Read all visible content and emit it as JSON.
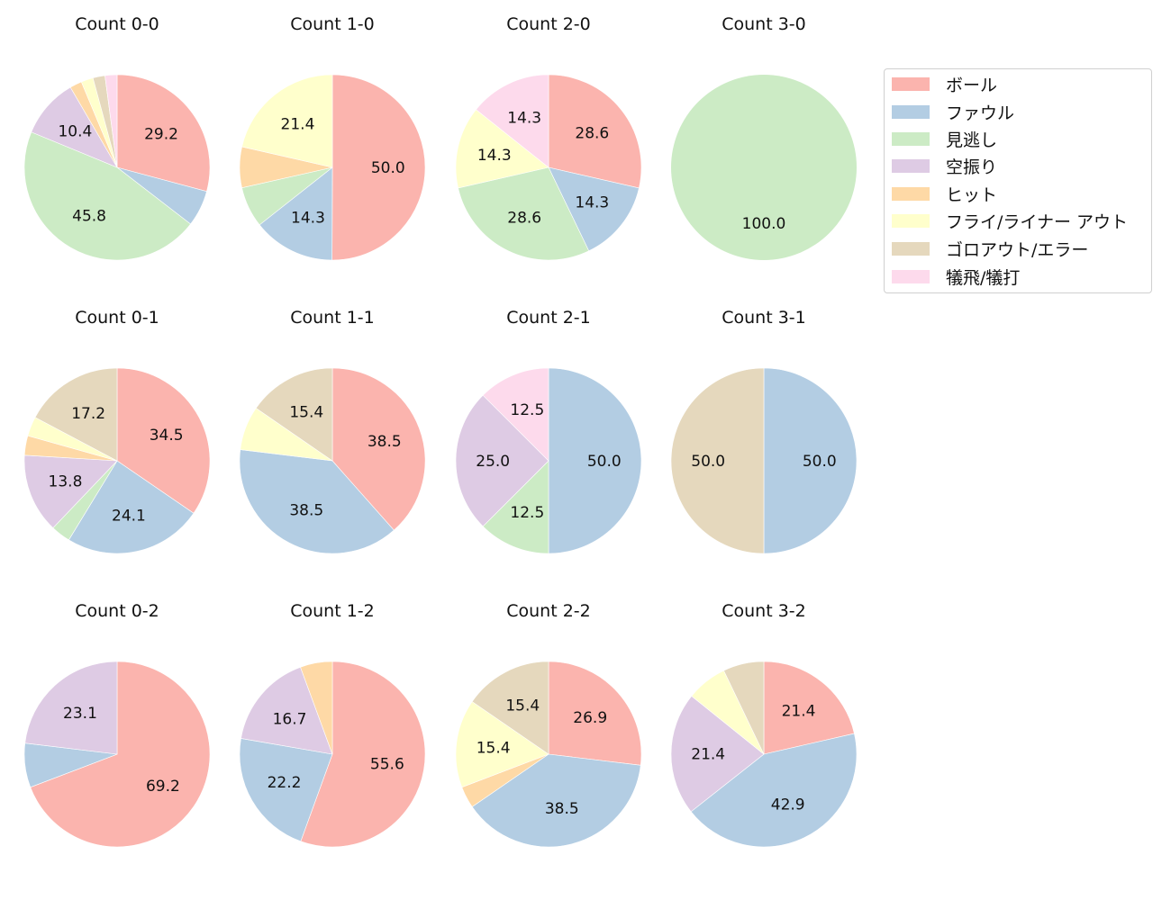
{
  "chart_data": {
    "type": "pie",
    "legend": {
      "position": "right",
      "entries": [
        {
          "label": "ボール",
          "color": "#fbb4ae"
        },
        {
          "label": "ファウル",
          "color": "#b3cde3"
        },
        {
          "label": "見逃し",
          "color": "#ccebc5"
        },
        {
          "label": "空振り",
          "color": "#decbe4"
        },
        {
          "label": "ヒット",
          "color": "#fed9a6"
        },
        {
          "label": "フライ/ライナー アウト",
          "color": "#ffffcc"
        },
        {
          "label": "ゴロアウト/エラー",
          "color": "#e5d8bd"
        },
        {
          "label": "犠飛/犠打",
          "color": "#fddaec"
        }
      ]
    },
    "categories": [
      "ボール",
      "ファウル",
      "見逃し",
      "空振り",
      "ヒット",
      "フライ/ライナー アウト",
      "ゴロアウト/エラー",
      "犠飛/犠打"
    ],
    "charts": [
      {
        "title": "Count 0-0",
        "row": 0,
        "col": 0,
        "values": [
          29.2,
          6.3,
          45.8,
          10.4,
          2.1,
          2.1,
          2.1,
          2.1
        ],
        "labels": [
          "29.2",
          "",
          "45.8",
          "10.4",
          "",
          "",
          "",
          ""
        ]
      },
      {
        "title": "Count 1-0",
        "row": 0,
        "col": 1,
        "values": [
          50.0,
          14.3,
          7.1,
          0,
          7.1,
          21.4,
          0,
          0
        ],
        "labels": [
          "50.0",
          "14.3",
          "",
          "",
          "",
          "21.4",
          "",
          ""
        ]
      },
      {
        "title": "Count 2-0",
        "row": 0,
        "col": 2,
        "values": [
          28.6,
          14.3,
          28.6,
          0,
          0,
          14.3,
          0,
          14.3
        ],
        "labels": [
          "28.6",
          "14.3",
          "28.6",
          "",
          "",
          "14.3",
          "",
          "14.3"
        ]
      },
      {
        "title": "Count 3-0",
        "row": 0,
        "col": 3,
        "values": [
          0,
          0,
          100.0,
          0,
          0,
          0,
          0,
          0
        ],
        "labels": [
          "",
          "",
          "100.0",
          "",
          "",
          "",
          "",
          ""
        ]
      },
      {
        "title": "Count 0-1",
        "row": 1,
        "col": 0,
        "values": [
          34.5,
          24.1,
          3.4,
          13.8,
          3.4,
          3.4,
          17.2,
          0
        ],
        "labels": [
          "34.5",
          "24.1",
          "",
          "13.8",
          "",
          "",
          "17.2",
          ""
        ]
      },
      {
        "title": "Count 1-1",
        "row": 1,
        "col": 1,
        "values": [
          38.5,
          38.5,
          0,
          0,
          0,
          7.7,
          15.4,
          0
        ],
        "labels": [
          "38.5",
          "38.5",
          "",
          "",
          "",
          "",
          "15.4",
          ""
        ]
      },
      {
        "title": "Count 2-1",
        "row": 1,
        "col": 2,
        "values": [
          0,
          50.0,
          12.5,
          25.0,
          0,
          0,
          0,
          12.5
        ],
        "labels": [
          "",
          "50.0",
          "12.5",
          "25.0",
          "",
          "",
          "",
          "12.5"
        ]
      },
      {
        "title": "Count 3-1",
        "row": 1,
        "col": 3,
        "values": [
          0,
          50.0,
          0,
          0,
          0,
          0,
          50.0,
          0
        ],
        "labels": [
          "",
          "50.0",
          "",
          "",
          "",
          "",
          "50.0",
          ""
        ]
      },
      {
        "title": "Count 0-2",
        "row": 2,
        "col": 0,
        "values": [
          69.2,
          7.7,
          0,
          23.1,
          0,
          0,
          0,
          0
        ],
        "labels": [
          "69.2",
          "",
          "",
          "23.1",
          "",
          "",
          "",
          ""
        ]
      },
      {
        "title": "Count 1-2",
        "row": 2,
        "col": 1,
        "values": [
          55.6,
          22.2,
          0,
          16.7,
          5.6,
          0,
          0,
          0
        ],
        "labels": [
          "55.6",
          "22.2",
          "",
          "16.7",
          "",
          "",
          "",
          ""
        ]
      },
      {
        "title": "Count 2-2",
        "row": 2,
        "col": 2,
        "values": [
          26.9,
          38.5,
          0,
          0,
          3.8,
          15.4,
          15.4,
          0
        ],
        "labels": [
          "26.9",
          "38.5",
          "",
          "",
          "",
          "15.4",
          "15.4",
          ""
        ]
      },
      {
        "title": "Count 3-2",
        "row": 2,
        "col": 3,
        "values": [
          21.4,
          42.9,
          0,
          21.4,
          0,
          7.1,
          7.1,
          0
        ],
        "labels": [
          "21.4",
          "42.9",
          "",
          "21.4",
          "",
          "",
          "",
          ""
        ]
      }
    ],
    "start_angle": 90,
    "direction": "clockwise",
    "label_format": "%.1f"
  }
}
